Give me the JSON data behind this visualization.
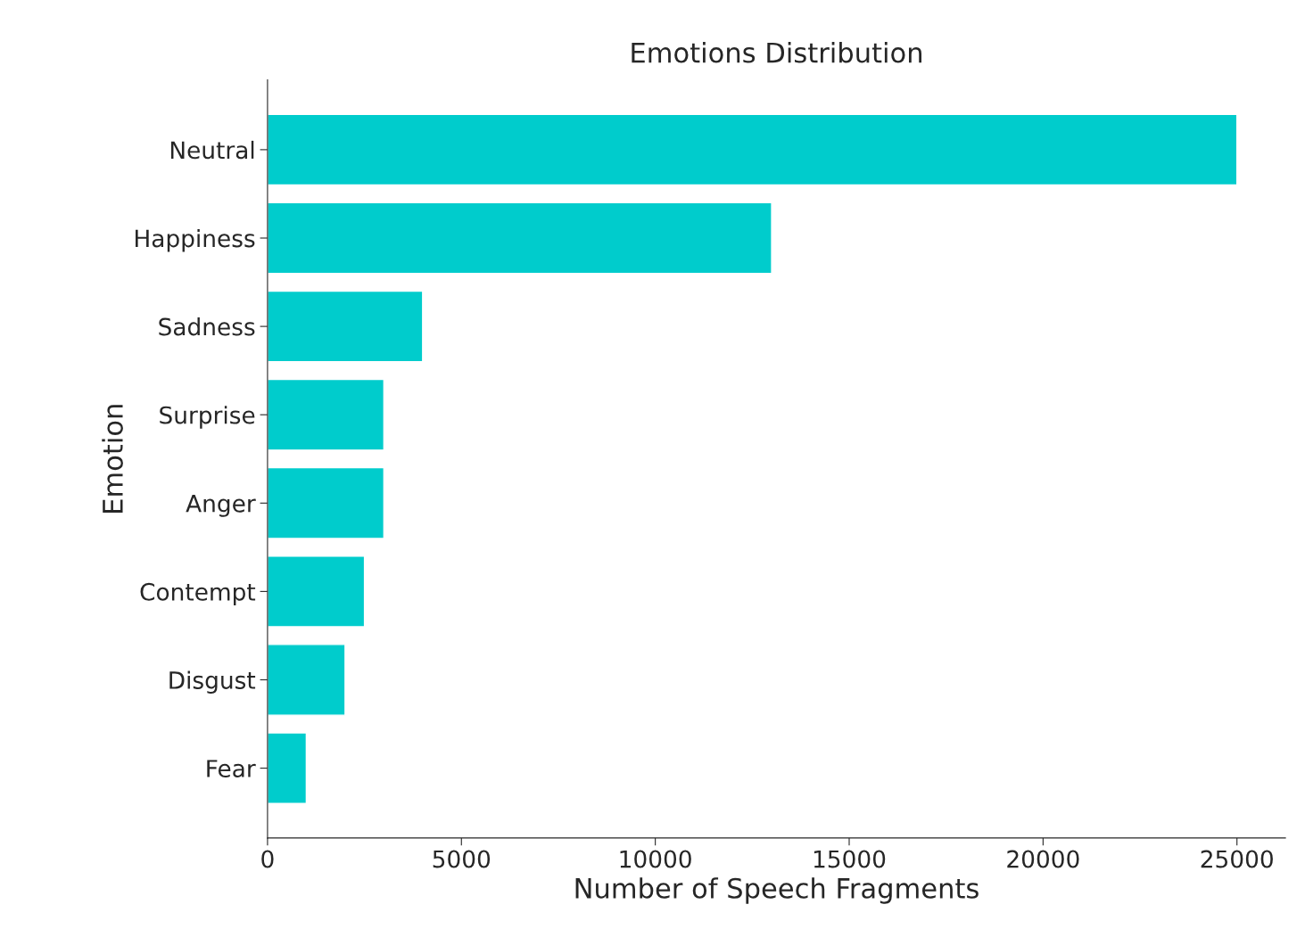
{
  "chart_data": {
    "type": "bar",
    "orientation": "horizontal",
    "title": "Emotions Distribution",
    "xlabel": "Number of Speech Fragments",
    "ylabel": "Emotion",
    "categories": [
      "Neutral",
      "Happiness",
      "Sadness",
      "Surprise",
      "Anger",
      "Contempt",
      "Disgust",
      "Fear"
    ],
    "values": [
      25000,
      13000,
      4000,
      3000,
      3000,
      2500,
      2000,
      1000
    ],
    "color": "#00cccc",
    "xlim": [
      0,
      26250
    ],
    "xticks": [
      0,
      5000,
      10000,
      15000,
      20000,
      25000
    ],
    "grid": false,
    "legend": false
  }
}
